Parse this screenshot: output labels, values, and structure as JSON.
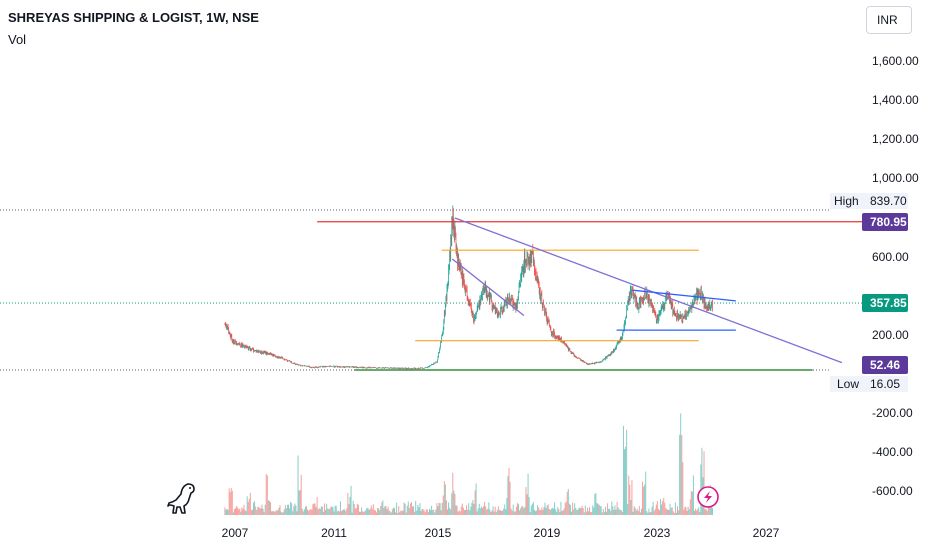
{
  "header": {
    "title": "SHREYAS SHIPPING & LOGIST, 1W, NSE",
    "indicator": "Vol",
    "currency": "INR"
  },
  "colors": {
    "up": "#26a69a",
    "down": "#ef5350",
    "purple_line": "#7e6fd6",
    "orange_line": "#f5a623",
    "blue_line": "#2962ff",
    "red_line": "#e53935",
    "green_line": "#388e3c",
    "price_tag": "#089981",
    "alert_tag": "#5b3a9c"
  },
  "price_labels": {
    "high_label": "High",
    "high_value": "839.70",
    "red_value": "780.95",
    "last_value": "357.85",
    "support_value": "52.46",
    "low_label": "Low",
    "low_value": "16.05"
  },
  "chart_data": {
    "type": "candlestick",
    "title": "SHREYAS SHIPPING & LOGIST, 1W, NSE",
    "interval": "1W",
    "exchange": "NSE",
    "currency": "INR",
    "y_axis": {
      "ticks": [
        1600,
        1400,
        1200,
        1000,
        600,
        200,
        -200,
        -400,
        -600
      ],
      "tick_labels": [
        "1,600.00",
        "1,400.00",
        "1,200.00",
        "1,000.00",
        "600.00",
        "200.00",
        "-200.00",
        "-400.00",
        "-600.00"
      ],
      "ylim": [
        -700,
        1800
      ],
      "grid": false
    },
    "x_axis": {
      "ticks": [
        2007,
        2011,
        2015,
        2019,
        2023,
        2027
      ],
      "tick_labels": [
        "2007",
        "2011",
        "2015",
        "2019",
        "2023",
        "2027"
      ],
      "xlim": [
        2005.9,
        2030.7
      ]
    },
    "price_series": [
      {
        "t": 2006.6,
        "p": 260
      },
      {
        "t": 2006.9,
        "p": 170
      },
      {
        "t": 2007.3,
        "p": 140
      },
      {
        "t": 2007.8,
        "p": 115
      },
      {
        "t": 2008.3,
        "p": 100
      },
      {
        "t": 2008.9,
        "p": 70
      },
      {
        "t": 2009.3,
        "p": 45
      },
      {
        "t": 2009.9,
        "p": 30
      },
      {
        "t": 2010.5,
        "p": 35
      },
      {
        "t": 2011.2,
        "p": 32
      },
      {
        "t": 2012.0,
        "p": 28
      },
      {
        "t": 2012.8,
        "p": 26
      },
      {
        "t": 2013.5,
        "p": 24
      },
      {
        "t": 2014.2,
        "p": 26
      },
      {
        "t": 2014.6,
        "p": 60
      },
      {
        "t": 2014.8,
        "p": 200
      },
      {
        "t": 2015.0,
        "p": 450
      },
      {
        "t": 2015.2,
        "p": 800
      },
      {
        "t": 2015.4,
        "p": 560
      },
      {
        "t": 2015.7,
        "p": 420
      },
      {
        "t": 2016.0,
        "p": 280
      },
      {
        "t": 2016.4,
        "p": 450
      },
      {
        "t": 2016.9,
        "p": 300
      },
      {
        "t": 2017.3,
        "p": 380
      },
      {
        "t": 2017.6,
        "p": 350
      },
      {
        "t": 2017.9,
        "p": 580
      },
      {
        "t": 2018.2,
        "p": 600
      },
      {
        "t": 2018.5,
        "p": 400
      },
      {
        "t": 2018.9,
        "p": 220
      },
      {
        "t": 2019.3,
        "p": 170
      },
      {
        "t": 2019.8,
        "p": 90
      },
      {
        "t": 2020.3,
        "p": 45
      },
      {
        "t": 2020.8,
        "p": 60
      },
      {
        "t": 2021.3,
        "p": 120
      },
      {
        "t": 2021.6,
        "p": 200
      },
      {
        "t": 2021.9,
        "p": 430
      },
      {
        "t": 2022.2,
        "p": 350
      },
      {
        "t": 2022.5,
        "p": 420
      },
      {
        "t": 2022.9,
        "p": 280
      },
      {
        "t": 2023.3,
        "p": 400
      },
      {
        "t": 2023.6,
        "p": 300
      },
      {
        "t": 2023.9,
        "p": 280
      },
      {
        "t": 2024.2,
        "p": 350
      },
      {
        "t": 2024.5,
        "p": 420
      },
      {
        "t": 2024.8,
        "p": 340
      },
      {
        "t": 2025.0,
        "p": 357.85
      }
    ],
    "volume": [
      {
        "t": 2006.8,
        "v": 35
      },
      {
        "t": 2007.5,
        "v": 25
      },
      {
        "t": 2008.2,
        "v": 45
      },
      {
        "t": 2009.4,
        "v": 60
      },
      {
        "t": 2010.0,
        "v": 20
      },
      {
        "t": 2011.3,
        "v": 30
      },
      {
        "t": 2012.5,
        "v": 15
      },
      {
        "t": 2013.6,
        "v": 15
      },
      {
        "t": 2014.9,
        "v": 40
      },
      {
        "t": 2015.2,
        "v": 55
      },
      {
        "t": 2016.0,
        "v": 35
      },
      {
        "t": 2017.3,
        "v": 50
      },
      {
        "t": 2018.0,
        "v": 45
      },
      {
        "t": 2019.5,
        "v": 30
      },
      {
        "t": 2020.6,
        "v": 25
      },
      {
        "t": 2021.7,
        "v": 90
      },
      {
        "t": 2021.9,
        "v": 40
      },
      {
        "t": 2022.4,
        "v": 60
      },
      {
        "t": 2023.1,
        "v": 35
      },
      {
        "t": 2023.8,
        "v": 155
      },
      {
        "t": 2024.2,
        "v": 40
      },
      {
        "t": 2024.6,
        "v": 85
      },
      {
        "t": 2024.9,
        "v": 30
      }
    ],
    "drawings": [
      {
        "kind": "hline",
        "color": "red",
        "y": 780.95,
        "x_from": 2010.1,
        "x_to": 2030.7
      },
      {
        "kind": "hline",
        "color": "green",
        "y": 16.05,
        "x_from": 2011.5,
        "x_to": 2028.8
      },
      {
        "kind": "hline",
        "color": "orange",
        "y": 635,
        "x_from": 2014.8,
        "x_to": 2024.5
      },
      {
        "kind": "hline",
        "color": "orange",
        "y": 170,
        "x_from": 2013.8,
        "x_to": 2024.5
      },
      {
        "kind": "hline",
        "color": "blue",
        "y": 225,
        "x_from": 2021.4,
        "x_to": 2025.9
      },
      {
        "kind": "trend",
        "color": "purple",
        "from": [
          2015.3,
          800
        ],
        "to": [
          2029.9,
          55
        ]
      },
      {
        "kind": "trend",
        "color": "purple",
        "from": [
          2015.2,
          590
        ],
        "to": [
          2017.9,
          300
        ]
      },
      {
        "kind": "trend",
        "color": "blue",
        "from": [
          2022.0,
          430
        ],
        "to": [
          2025.9,
          375
        ]
      }
    ]
  }
}
